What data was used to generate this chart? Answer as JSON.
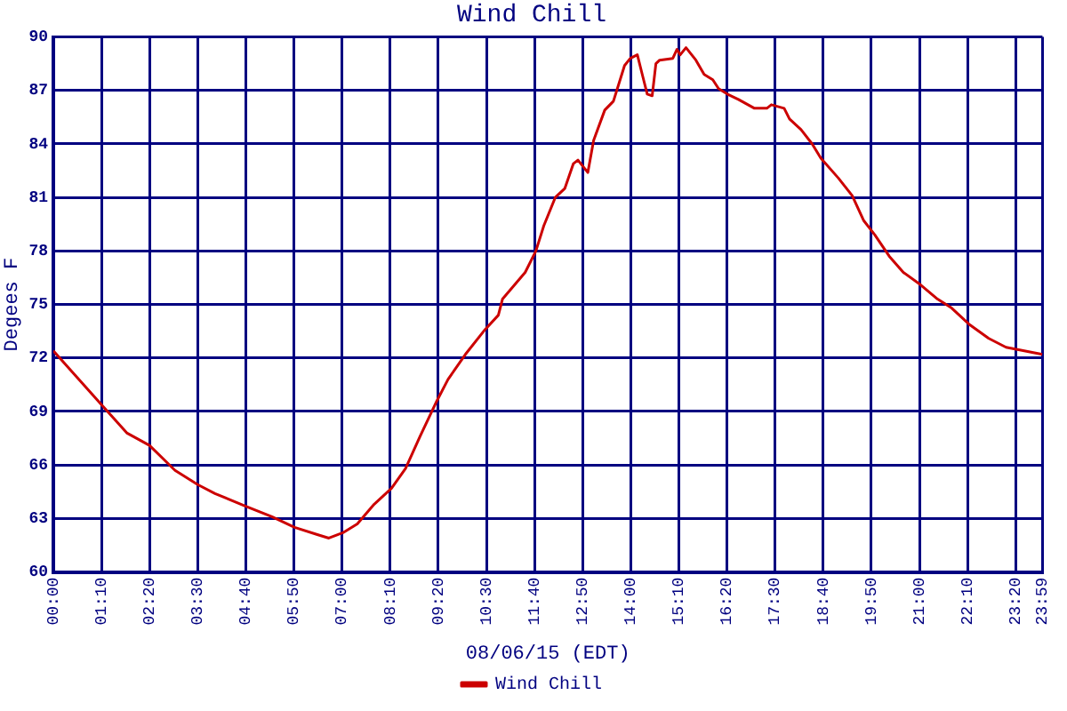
{
  "chart_data": {
    "type": "line",
    "title": "Wind Chill",
    "xlabel": "08/06/15 (EDT)",
    "ylabel": "Degees F",
    "xlim": [
      0,
      23.983
    ],
    "ylim": [
      60,
      90
    ],
    "xticks": [
      {
        "value": 0,
        "label": "00:00"
      },
      {
        "value": 1.1667,
        "label": "01:10"
      },
      {
        "value": 2.3333,
        "label": "02:20"
      },
      {
        "value": 3.5,
        "label": "03:30"
      },
      {
        "value": 4.6667,
        "label": "04:40"
      },
      {
        "value": 5.8333,
        "label": "05:50"
      },
      {
        "value": 7,
        "label": "07:00"
      },
      {
        "value": 8.1667,
        "label": "08:10"
      },
      {
        "value": 9.3333,
        "label": "09:20"
      },
      {
        "value": 10.5,
        "label": "10:30"
      },
      {
        "value": 11.6667,
        "label": "11:40"
      },
      {
        "value": 12.8333,
        "label": "12:50"
      },
      {
        "value": 14,
        "label": "14:00"
      },
      {
        "value": 15.1667,
        "label": "15:10"
      },
      {
        "value": 16.3333,
        "label": "16:20"
      },
      {
        "value": 17.5,
        "label": "17:30"
      },
      {
        "value": 18.6667,
        "label": "18:40"
      },
      {
        "value": 19.8333,
        "label": "19:50"
      },
      {
        "value": 21,
        "label": "21:00"
      },
      {
        "value": 22.1667,
        "label": "22:10"
      },
      {
        "value": 23.3333,
        "label": "23:20"
      },
      {
        "value": 23.983,
        "label": "23:59"
      }
    ],
    "yticks": [
      60,
      63,
      66,
      69,
      72,
      75,
      78,
      81,
      84,
      87,
      90
    ],
    "grid": true,
    "legend": "bottom",
    "marker": "none",
    "line_style": "solid",
    "series": [
      {
        "name": "Wind Chill",
        "color": "#cc0000",
        "x": [
          0,
          1.16,
          1.78,
          2.33,
          2.95,
          3.5,
          3.92,
          4.65,
          5.3,
          5.85,
          6.4,
          6.68,
          7.02,
          7.37,
          7.78,
          8.2,
          8.54,
          8.89,
          9.3,
          9.57,
          9.99,
          10.47,
          10.79,
          10.89,
          11.44,
          11.7,
          11.89,
          12.17,
          12.4,
          12.61,
          12.72,
          12.96,
          13.1,
          13.37,
          13.58,
          13.85,
          13.99,
          14.16,
          14.29,
          14.4,
          14.52,
          14.61,
          14.7,
          15.02,
          15.12,
          15.2,
          15.34,
          15.58,
          15.78,
          15.99,
          16.13,
          16.34,
          16.61,
          17,
          17.3,
          17.41,
          17.72,
          17.85,
          18.13,
          18.4,
          18.61,
          19.03,
          19.37,
          19.65,
          19.92,
          20.27,
          20.61,
          21.03,
          21.44,
          21.78,
          22.2,
          22.68,
          23.1,
          23.983
        ],
        "values": [
          72.4,
          69.4,
          67.8,
          67.1,
          65.7,
          64.9,
          64.4,
          63.7,
          63.1,
          62.5,
          62.1,
          61.9,
          62.2,
          62.7,
          63.8,
          64.7,
          65.8,
          67.6,
          69.6,
          70.8,
          72.2,
          73.6,
          74.4,
          75.3,
          76.8,
          78,
          79.4,
          81,
          81.5,
          82.9,
          83.1,
          82.4,
          84.2,
          85.9,
          86.4,
          88.4,
          88.8,
          89,
          87.8,
          86.8,
          86.7,
          88.5,
          88.7,
          88.8,
          89.3,
          89,
          89.4,
          88.7,
          87.9,
          87.6,
          87.1,
          86.8,
          86.5,
          86,
          86,
          86.2,
          86,
          85.4,
          84.8,
          84,
          83.2,
          82.1,
          81.1,
          79.7,
          78.9,
          77.7,
          76.8,
          76.1,
          75.3,
          74.8,
          73.9,
          73.1,
          72.6,
          72.2
        ]
      }
    ]
  }
}
